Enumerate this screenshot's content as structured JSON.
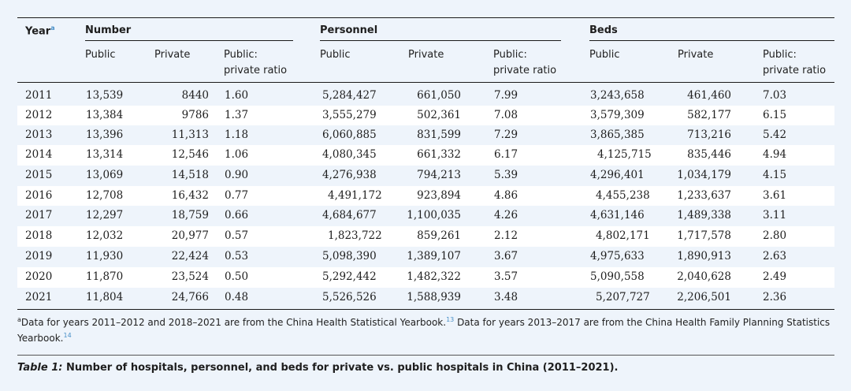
{
  "headers": {
    "year": "Year",
    "year_sup": "a",
    "number": "Number",
    "personnel": "Personnel",
    "beds": "Beds",
    "public": "Public",
    "private": "Private",
    "ratio_line1": "Public:",
    "ratio_line2": "private ratio"
  },
  "rows": [
    [
      "2011",
      "13,539",
      "8440",
      "1.60",
      "5,284,427",
      "661,050",
      "7.99",
      "3,243,658",
      "461,460",
      "7.03"
    ],
    [
      "2012",
      "13,384",
      "9786",
      "1.37",
      "3,555,279",
      "502,361",
      "7.08",
      "3,579,309",
      "582,177",
      "6.15"
    ],
    [
      "2013",
      "13,396",
      "11,313",
      "1.18",
      "6,060,885",
      "831,599",
      "7.29",
      "3,865,385",
      "713,216",
      "5.42"
    ],
    [
      "2014",
      "13,314",
      "12,546",
      "1.06",
      "4,080,345",
      "661,332",
      "6.17",
      "4,125,715",
      "835,446",
      "4.94"
    ],
    [
      "2015",
      "13,069",
      "14,518",
      "0.90",
      "4,276,938",
      "794,213",
      "5.39",
      "4,296,401",
      "1,034,179",
      "4.15"
    ],
    [
      "2016",
      "12,708",
      "16,432",
      "0.77",
      "4,491,172",
      "923,894",
      "4.86",
      "4,455,238",
      "1,233,637",
      "3.61"
    ],
    [
      "2017",
      "12,297",
      "18,759",
      "0.66",
      "4,684,677",
      "1,100,035",
      "4.26",
      "4,631,146",
      "1,489,338",
      "3.11"
    ],
    [
      "2018",
      "12,032",
      "20,977",
      "0.57",
      "1,823,722",
      "859,261",
      "2.12",
      "4,802,171",
      "1,717,578",
      "2.80"
    ],
    [
      "2019",
      "11,930",
      "22,424",
      "0.53",
      "5,098,390",
      "1,389,107",
      "3.67",
      "4,975,633",
      "1,890,913",
      "2.63"
    ],
    [
      "2020",
      "11,870",
      "23,524",
      "0.50",
      "5,292,442",
      "1,482,322",
      "3.57",
      "5,090,558",
      "2,040,628",
      "2.49"
    ],
    [
      "2021",
      "11,804",
      "24,766",
      "0.48",
      "5,526,526",
      "1,588,939",
      "3.48",
      "5,207,727",
      "2,206,501",
      "2.36"
    ]
  ],
  "footnote": {
    "marker": "a",
    "text1": "Data for years 2011–2012 and 2018–2021 are from the China Health Statistical Yearbook.",
    "ref1": "13",
    "text2": " Data for years 2013–2017 are from the China Health Family Planning Statistics",
    "text3": "Yearbook.",
    "ref2": "14"
  },
  "caption": {
    "label": "Table 1:",
    "text": " Number of hospitals, personnel, and beds for private vs. public hospitals in China (2011–2021)."
  }
}
